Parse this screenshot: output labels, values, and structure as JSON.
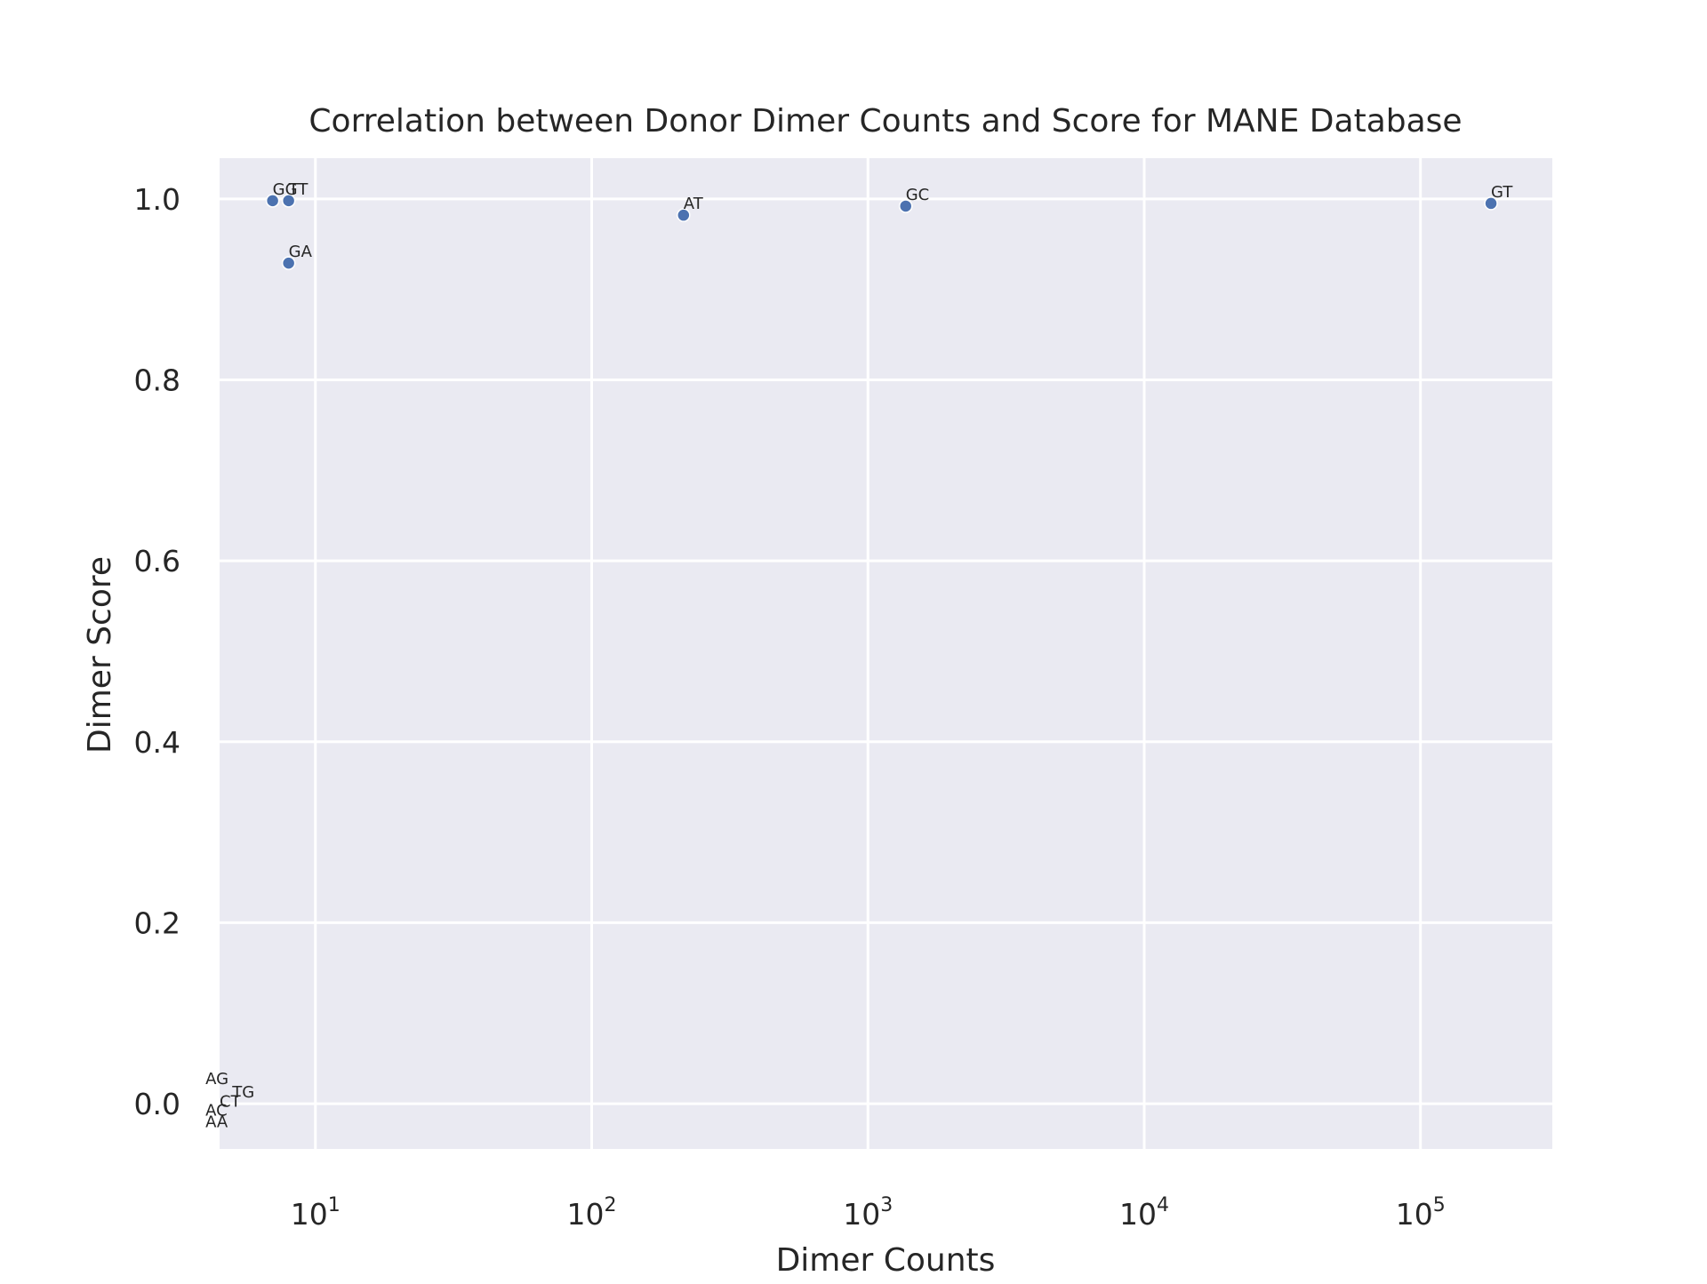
{
  "chart_data": {
    "type": "scatter",
    "title": "Correlation between Donor Dimer Counts and Score for MANE Database",
    "xlabel": "Dimer Counts",
    "ylabel": "Dimer Score",
    "xscale": "log",
    "xlim": [
      4.5,
      300000
    ],
    "ylim": [
      -0.05,
      1.045
    ],
    "grid": true,
    "legend": "none",
    "x_ticks": [
      {
        "value": 10,
        "base": "10",
        "exp": "1"
      },
      {
        "value": 100,
        "base": "10",
        "exp": "2"
      },
      {
        "value": 1000,
        "base": "10",
        "exp": "3"
      },
      {
        "value": 10000,
        "base": "10",
        "exp": "4"
      },
      {
        "value": 100000,
        "base": "10",
        "exp": "5"
      }
    ],
    "y_ticks": [
      {
        "value": 0.0,
        "label": "0.0"
      },
      {
        "value": 0.2,
        "label": "0.2"
      },
      {
        "value": 0.4,
        "label": "0.4"
      },
      {
        "value": 0.6,
        "label": "0.6"
      },
      {
        "value": 0.8,
        "label": "0.8"
      },
      {
        "value": 1.0,
        "label": "1.0"
      }
    ],
    "points": [
      {
        "label": "GG",
        "x": 7,
        "y": 0.998,
        "marker": true
      },
      {
        "label": "TT",
        "x": 8,
        "y": 0.998,
        "marker": true
      },
      {
        "label": "GA",
        "x": 8,
        "y": 0.929,
        "marker": true
      },
      {
        "label": "AT",
        "x": 215,
        "y": 0.982,
        "marker": true
      },
      {
        "label": "GC",
        "x": 1370,
        "y": 0.992,
        "marker": true
      },
      {
        "label": "GT",
        "x": 180000,
        "y": 0.995,
        "marker": true
      },
      {
        "label": "AG",
        "x": 4,
        "y": 0.015,
        "marker": false
      },
      {
        "label": "TG",
        "x": 5,
        "y": 0.0,
        "marker": false
      },
      {
        "label": "CT",
        "x": 4.5,
        "y": -0.01,
        "marker": false
      },
      {
        "label": "AC",
        "x": 4,
        "y": -0.02,
        "marker": false
      },
      {
        "label": "AA",
        "x": 4,
        "y": -0.033,
        "marker": false
      }
    ],
    "colors": {
      "marker": "#4c72b0",
      "plot_background": "#eaeaf2",
      "grid": "#ffffff",
      "text": "#262626"
    }
  }
}
